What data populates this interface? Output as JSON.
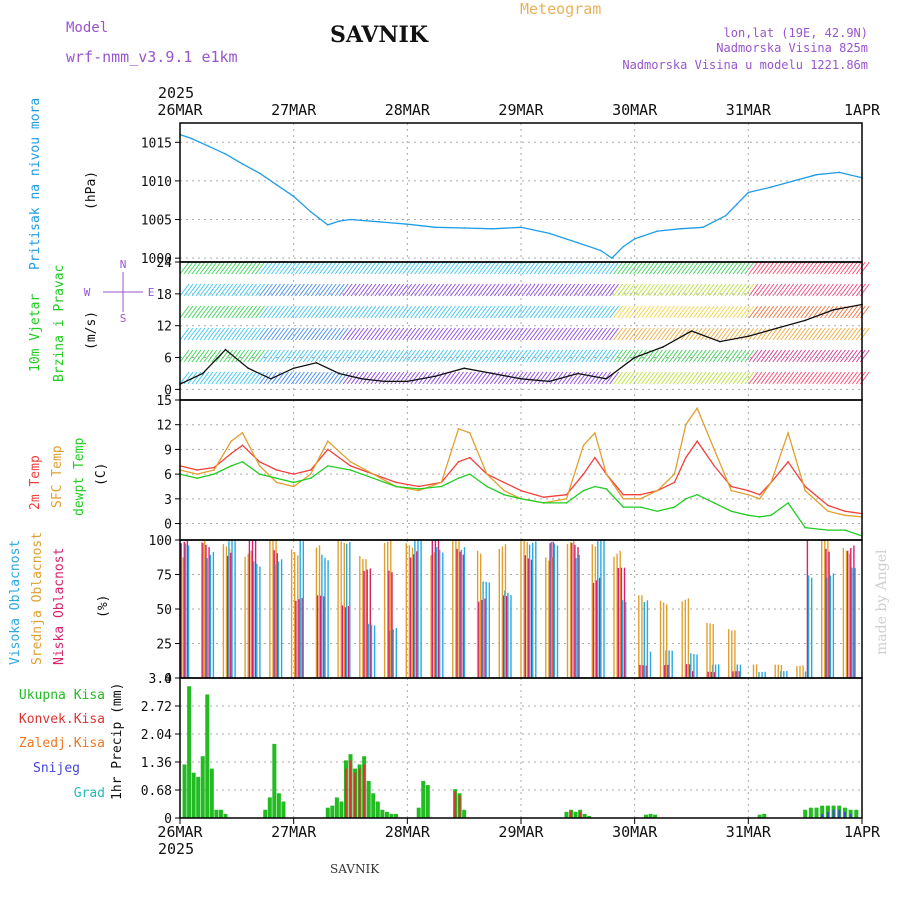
{
  "header": {
    "model_label": "Model",
    "model_name": "wrf-nmm_v3.9.1 e1km",
    "station": "SAVNIK",
    "chart_kind": "Meteogram",
    "coords": "lon,lat (19E, 42.9N)",
    "elevation": "Nadmorska Visina 825m",
    "model_elevation": "Nadmorska Visina u modelu 1221.86m",
    "footer_station": "SAVNIK",
    "credit": "made by Angel",
    "year": "2025"
  },
  "colors": {
    "pressure": "#1e9ce8",
    "temp2m": "#f0403c",
    "sfc_temp": "#e0a030",
    "dewpt": "#22cc22",
    "high_cloud": "#2aa8e0",
    "mid_cloud": "#e0a030",
    "low_cloud": "#d8206c",
    "precip_total": "#22bb22",
    "precip_conv": "#dd3333",
    "precip_frozen": "#ee7722",
    "snow": "#4444dd",
    "hail": "#22bbbb",
    "model_label": "#9955cc",
    "grid": "#aaaaaa"
  },
  "chart_data": {
    "type": "line",
    "x_ticks": [
      "26MAR",
      "27MAR",
      "28MAR",
      "29MAR",
      "30MAR",
      "31MAR",
      "1APR"
    ],
    "x_unit": "days since 26MAR 00UTC",
    "x_range": [
      0,
      6
    ],
    "panels": [
      {
        "id": "pressure",
        "labels": [
          "Pritisak na nivou mora"
        ],
        "unit": "(hPa)",
        "ylim": [
          999.5,
          1017.5
        ],
        "yticks": [
          1000,
          1005,
          1010,
          1015
        ],
        "series": [
          {
            "name": "Pritisak na nivou mora",
            "x": [
              0,
              0.1,
              0.25,
              0.4,
              0.55,
              0.7,
              0.85,
              1.0,
              1.15,
              1.3,
              1.4,
              1.5,
              1.75,
              2.0,
              2.25,
              2.5,
              2.75,
              3.0,
              3.25,
              3.5,
              3.7,
              3.8,
              3.9,
              4.0,
              4.2,
              4.4,
              4.6,
              4.8,
              4.9,
              5.0,
              5.2,
              5.4,
              5.6,
              5.8,
              6.0
            ],
            "y": [
              1016,
              1015.5,
              1014.5,
              1013.5,
              1012.2,
              1011,
              1009.5,
              1008,
              1006,
              1004.3,
              1004.8,
              1005,
              1004.7,
              1004.4,
              1004,
              1003.9,
              1003.8,
              1004,
              1003.2,
              1002,
              1001,
              1000,
              1001.5,
              1002.5,
              1003.5,
              1003.8,
              1004,
              1005.5,
              1007,
              1008.5,
              1009.2,
              1010,
              1010.8,
              1011.1,
              1010.4
            ]
          }
        ]
      },
      {
        "id": "wind",
        "labels": [
          "10m Vjetar",
          "Brzina i Pravac"
        ],
        "unit": "(m/s)",
        "ylim": [
          -2,
          24
        ],
        "yticks": [
          0,
          6,
          12,
          18,
          24
        ],
        "compass": [
          "N",
          "E",
          "W",
          "S"
        ],
        "series": [
          {
            "name": "Brzina i Pravac",
            "x": [
              0,
              0.2,
              0.4,
              0.6,
              0.8,
              1.0,
              1.2,
              1.4,
              1.6,
              1.8,
              2.0,
              2.25,
              2.5,
              2.75,
              3.0,
              3.25,
              3.5,
              3.75,
              4.0,
              4.25,
              4.5,
              4.75,
              5.0,
              5.25,
              5.5,
              5.75,
              6.0
            ],
            "y": [
              1,
              3,
              7.5,
              4,
              2,
              4,
              5,
              3,
              2,
              1.5,
              1.5,
              2.5,
              4,
              3,
              2,
              1.5,
              3,
              2,
              6,
              8,
              11,
              9,
              10,
              11.5,
              13,
              15,
              16
            ]
          }
        ]
      },
      {
        "id": "temperature",
        "labels": [
          "2m Temp",
          "SFC Temp",
          "dewpt Temp"
        ],
        "unit": "(C)",
        "ylim": [
          -2,
          15
        ],
        "yticks": [
          0,
          3,
          6,
          9,
          12,
          15
        ],
        "series": [
          {
            "name": "2m Temp",
            "x": [
              0,
              0.15,
              0.3,
              0.45,
              0.55,
              0.7,
              0.85,
              1.0,
              1.15,
              1.3,
              1.5,
              1.7,
              1.9,
              2.1,
              2.3,
              2.45,
              2.55,
              2.7,
              2.85,
              3.0,
              3.2,
              3.4,
              3.55,
              3.65,
              3.75,
              3.9,
              4.05,
              4.2,
              4.35,
              4.45,
              4.55,
              4.7,
              4.85,
              5.0,
              5.1,
              5.2,
              5.35,
              5.5,
              5.7,
              5.85,
              6.0
            ],
            "y": [
              7,
              6.5,
              6.8,
              8.5,
              9.5,
              7.5,
              6.5,
              6,
              6.5,
              9,
              7,
              6,
              5,
              4.5,
              5,
              7.5,
              8,
              6,
              5,
              4,
              3.2,
              3.5,
              6,
              8,
              6,
              3.5,
              3.5,
              4,
              5,
              8,
              10,
              7,
              4.5,
              4,
              3.5,
              5,
              7.5,
              4.5,
              2.2,
              1.5,
              1.2
            ]
          },
          {
            "name": "SFC Temp",
            "x": [
              0,
              0.15,
              0.3,
              0.45,
              0.55,
              0.7,
              0.85,
              1.0,
              1.15,
              1.3,
              1.5,
              1.7,
              1.9,
              2.1,
              2.3,
              2.45,
              2.55,
              2.7,
              2.85,
              3.0,
              3.2,
              3.4,
              3.55,
              3.65,
              3.75,
              3.9,
              4.05,
              4.2,
              4.35,
              4.45,
              4.55,
              4.7,
              4.85,
              5.0,
              5.1,
              5.2,
              5.35,
              5.5,
              5.7,
              5.85,
              6.0
            ],
            "y": [
              6.5,
              6,
              6.5,
              10,
              11,
              7,
              5,
              4.5,
              6,
              10,
              7.5,
              6,
              4.5,
              4,
              5,
              11.5,
              11,
              6,
              4,
              3,
              2.5,
              3,
              9.5,
              11,
              6,
              3,
              3,
              4,
              6,
              12,
              14,
              9,
              4,
              3.5,
              3,
              5,
              11,
              4,
              1.5,
              1,
              0.8
            ]
          },
          {
            "name": "dewpt Temp",
            "x": [
              0,
              0.15,
              0.3,
              0.45,
              0.55,
              0.7,
              0.85,
              1.0,
              1.15,
              1.3,
              1.5,
              1.7,
              1.9,
              2.1,
              2.3,
              2.45,
              2.55,
              2.7,
              2.85,
              3.0,
              3.2,
              3.4,
              3.55,
              3.65,
              3.75,
              3.9,
              4.05,
              4.2,
              4.35,
              4.45,
              4.55,
              4.7,
              4.85,
              5.0,
              5.1,
              5.2,
              5.35,
              5.5,
              5.7,
              5.85,
              6.0
            ],
            "y": [
              6,
              5.5,
              6,
              7,
              7.5,
              6,
              5.5,
              5,
              5.5,
              7,
              6.5,
              5.5,
              4.5,
              4.2,
              4.5,
              5.5,
              6,
              4.5,
              3.5,
              3,
              2.5,
              2.5,
              4,
              4.5,
              4.2,
              2,
              2,
              1.5,
              2,
              3,
              3.5,
              2.5,
              1.5,
              1,
              0.8,
              1,
              2.5,
              -0.5,
              -0.8,
              -0.8,
              -1.5
            ]
          }
        ]
      },
      {
        "id": "clouds",
        "labels": [
          "Visoka Oblacnost",
          "Srednja Oblacnost",
          "Niska Oblacnost"
        ],
        "unit": "(%)",
        "ylim": [
          0,
          100
        ],
        "yticks": [
          0,
          25,
          50,
          75,
          100
        ],
        "cloud_cover_profile": {
          "high": [
            [
              0,
              0.5,
              100
            ],
            [
              0.5,
              1.0,
              90
            ],
            [
              1.0,
              1.5,
              100
            ],
            [
              1.5,
              2.0,
              40
            ],
            [
              2.0,
              2.5,
              100
            ],
            [
              2.5,
              3.0,
              70
            ],
            [
              3.0,
              3.6,
              100
            ],
            [
              3.6,
              3.8,
              100
            ],
            [
              3.8,
              4.1,
              60
            ],
            [
              4.1,
              4.6,
              20
            ],
            [
              4.6,
              5.0,
              10
            ],
            [
              5.0,
              5.5,
              5
            ],
            [
              5.5,
              6.0,
              80
            ]
          ],
          "mid": [
            [
              0,
              0.5,
              100
            ],
            [
              0.5,
              1.0,
              100
            ],
            [
              1.0,
              1.5,
              100
            ],
            [
              1.5,
              2.0,
              100
            ],
            [
              2.0,
              2.5,
              100
            ],
            [
              2.5,
              3.0,
              100
            ],
            [
              3.0,
              3.6,
              100
            ],
            [
              3.6,
              4.0,
              100
            ],
            [
              4.0,
              4.5,
              60
            ],
            [
              4.5,
              5.0,
              40
            ],
            [
              5.0,
              5.5,
              10
            ],
            [
              5.5,
              6.0,
              100
            ]
          ],
          "low": [
            [
              0,
              0.5,
              100
            ],
            [
              0.5,
              1.0,
              100
            ],
            [
              1.0,
              1.5,
              60
            ],
            [
              1.5,
              2.0,
              80
            ],
            [
              2.0,
              2.5,
              100
            ],
            [
              2.5,
              3.0,
              60
            ],
            [
              3.0,
              3.6,
              100
            ],
            [
              3.6,
              4.0,
              80
            ],
            [
              4.0,
              4.5,
              10
            ],
            [
              4.5,
              5.0,
              5
            ],
            [
              5.0,
              5.5,
              0
            ],
            [
              5.5,
              6.0,
              100
            ]
          ]
        }
      },
      {
        "id": "precip",
        "labels": [
          "Ukupna Kisa",
          "Konvek.Kisa",
          "Zaledj.Kisa",
          "Snijeg",
          "Grad"
        ],
        "unit": "1hr Precip (mm)",
        "ylim": [
          0,
          3.4
        ],
        "yticks": [
          "0",
          "0.68",
          "1.36",
          "2.04",
          "2.72",
          "3.4"
        ],
        "series": [
          {
            "name": "Ukupna Kisa",
            "x": [
              0.04,
              0.08,
              0.12,
              0.16,
              0.2,
              0.24,
              0.28,
              0.32,
              0.36,
              0.4,
              0.75,
              0.79,
              0.83,
              0.87,
              0.91,
              1.3,
              1.34,
              1.38,
              1.42,
              1.46,
              1.5,
              1.54,
              1.58,
              1.62,
              1.66,
              1.7,
              1.74,
              1.78,
              1.82,
              1.86,
              1.9,
              2.1,
              2.14,
              2.18,
              2.42,
              2.46,
              2.5,
              3.4,
              3.44,
              3.48,
              3.52,
              3.56,
              3.6,
              4.1,
              4.14,
              4.18,
              5.1,
              5.14,
              5.5,
              5.55,
              5.6,
              5.65,
              5.7,
              5.75,
              5.8,
              5.85,
              5.9,
              5.95
            ],
            "y": [
              1.3,
              3.2,
              1.1,
              1.0,
              1.5,
              3.0,
              1.2,
              0.2,
              0.2,
              0.1,
              0.2,
              0.5,
              1.8,
              0.6,
              0.4,
              0.25,
              0.3,
              0.5,
              0.4,
              1.4,
              1.55,
              1.2,
              1.3,
              1.5,
              0.9,
              0.6,
              0.4,
              0.2,
              0.15,
              0.1,
              0.1,
              0.25,
              0.9,
              0.8,
              0.7,
              0.6,
              0.2,
              0.15,
              0.2,
              0.15,
              0.2,
              0.1,
              0.05,
              0.08,
              0.1,
              0.08,
              0.08,
              0.1,
              0.2,
              0.25,
              0.25,
              0.3,
              0.3,
              0.3,
              0.3,
              0.25,
              0.2,
              0.2
            ]
          },
          {
            "name": "Konvek.Kisa",
            "x": [
              1.46,
              1.5,
              1.54,
              1.58,
              1.62,
              2.42,
              2.46,
              3.44,
              3.52
            ],
            "y": [
              1.2,
              1.4,
              1.1,
              1.2,
              1.3,
              0.65,
              0.55,
              0.18,
              0.15
            ]
          },
          {
            "name": "Snijeg",
            "x": [
              5.65,
              5.7,
              5.75,
              5.8,
              5.85,
              5.9
            ],
            "y": [
              0.1,
              0.15,
              0.2,
              0.2,
              0.15,
              0.1
            ]
          }
        ]
      }
    ]
  }
}
